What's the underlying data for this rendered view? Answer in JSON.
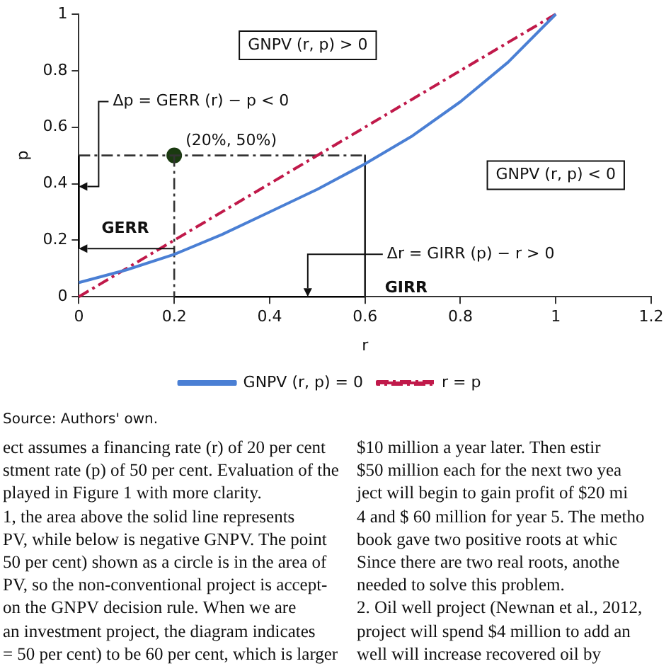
{
  "chart_data": {
    "type": "line",
    "xlabel": "r",
    "ylabel": "p",
    "xlim": [
      0,
      1.2
    ],
    "ylim": [
      0,
      1
    ],
    "xticks": [
      0,
      0.2,
      0.4,
      0.6,
      0.8,
      {
        "value": 1,
        "label": "1"
      },
      1.2
    ],
    "yticks": [
      0,
      0.2,
      0.4,
      0.6,
      0.8,
      {
        "value": 1,
        "label": "1"
      }
    ],
    "grid": false,
    "legend": "bottom",
    "series": [
      {
        "name": "GNPV (r, p) = 0",
        "color": "#4a7fd4",
        "line_style": "solid",
        "x": [
          0,
          0.1,
          0.2,
          0.3,
          0.4,
          0.5,
          0.6,
          0.7,
          0.8,
          0.9,
          1
        ],
        "values": [
          0.05,
          0.095,
          0.15,
          0.22,
          0.3,
          0.38,
          0.47,
          0.57,
          0.69,
          0.83,
          1
        ]
      },
      {
        "name": "r = p",
        "color": "#c0194a",
        "line_style": "dashed",
        "x": [
          0,
          1
        ],
        "values": [
          0,
          1
        ]
      },
      {
        "color": "#333333",
        "line_style": "dashed",
        "x": [
          0,
          0.6
        ],
        "values": [
          0.5,
          0.5
        ]
      },
      {
        "color": "#333333",
        "line_style": "dashed",
        "x": [
          0.2,
          0.2
        ],
        "values": [
          0.5,
          0
        ]
      },
      {
        "color": "#222222",
        "line_style": "solid",
        "x": [
          0.6,
          0.6
        ],
        "values": [
          0.5,
          0
        ]
      },
      {
        "color": "#000000",
        "line_style": "solid",
        "x": [
          0,
          0
        ],
        "values": [
          0.17,
          0.5
        ]
      },
      {
        "color": "#000000",
        "line_style": "solid",
        "x": [
          0.2,
          0.6
        ],
        "values": [
          0,
          0
        ]
      },
      {
        "type": "scatter",
        "color": "#1a3a10",
        "x": [
          0.2
        ],
        "values": [
          0.5
        ]
      }
    ],
    "annotations": [
      "GNPV (r, p) > 0",
      "GNPV (r, p) < 0",
      {
        "text": "(20%, 50%)",
        "x": 0.2,
        "y": 0.5
      },
      {
        "text": "Δp = GERR (r) − p < 0",
        "x": 0,
        "y": 0.39
      },
      {
        "text": "GERR",
        "x": 0,
        "y": 0.17
      },
      {
        "text": "Δr = GIRR (p) − r > 0",
        "x": 0.48,
        "y": 0
      },
      {
        "text": "GIRR",
        "x": 0.6,
        "y": 0
      },
      "Source: Authors' own.",
      "ect assumes a financing rate (r) of 20 per cent",
      "stment rate (p) of 50 per cent. Evaluation of the",
      "played in Figure 1 with more clarity.",
      "1, the area above the solid line represents",
      "PV, while below is negative GNPV. The point",
      "50 per cent) shown as a circle is in the area of",
      "PV, so the non-conventional project is accept-",
      "on the GNPV decision rule. When we are",
      "an investment project, the diagram indicates",
      "= 50 per cent) to be 60 per cent, which is larger",
      "$10 million a year later. Then estir",
      "$50 million each for the next two yea",
      "ject will begin to gain profit of $20 mi",
      "4 and $ 60 million for year 5. The metho",
      "book gave two positive roots at whic",
      "Since there are two real roots, anothe",
      "needed to solve this problem.",
      "2. Oil well project (Newnan et al., 2012,",
      "project will spend $4 million to add an",
      "well will increase recovered oil by"
    ]
  }
}
